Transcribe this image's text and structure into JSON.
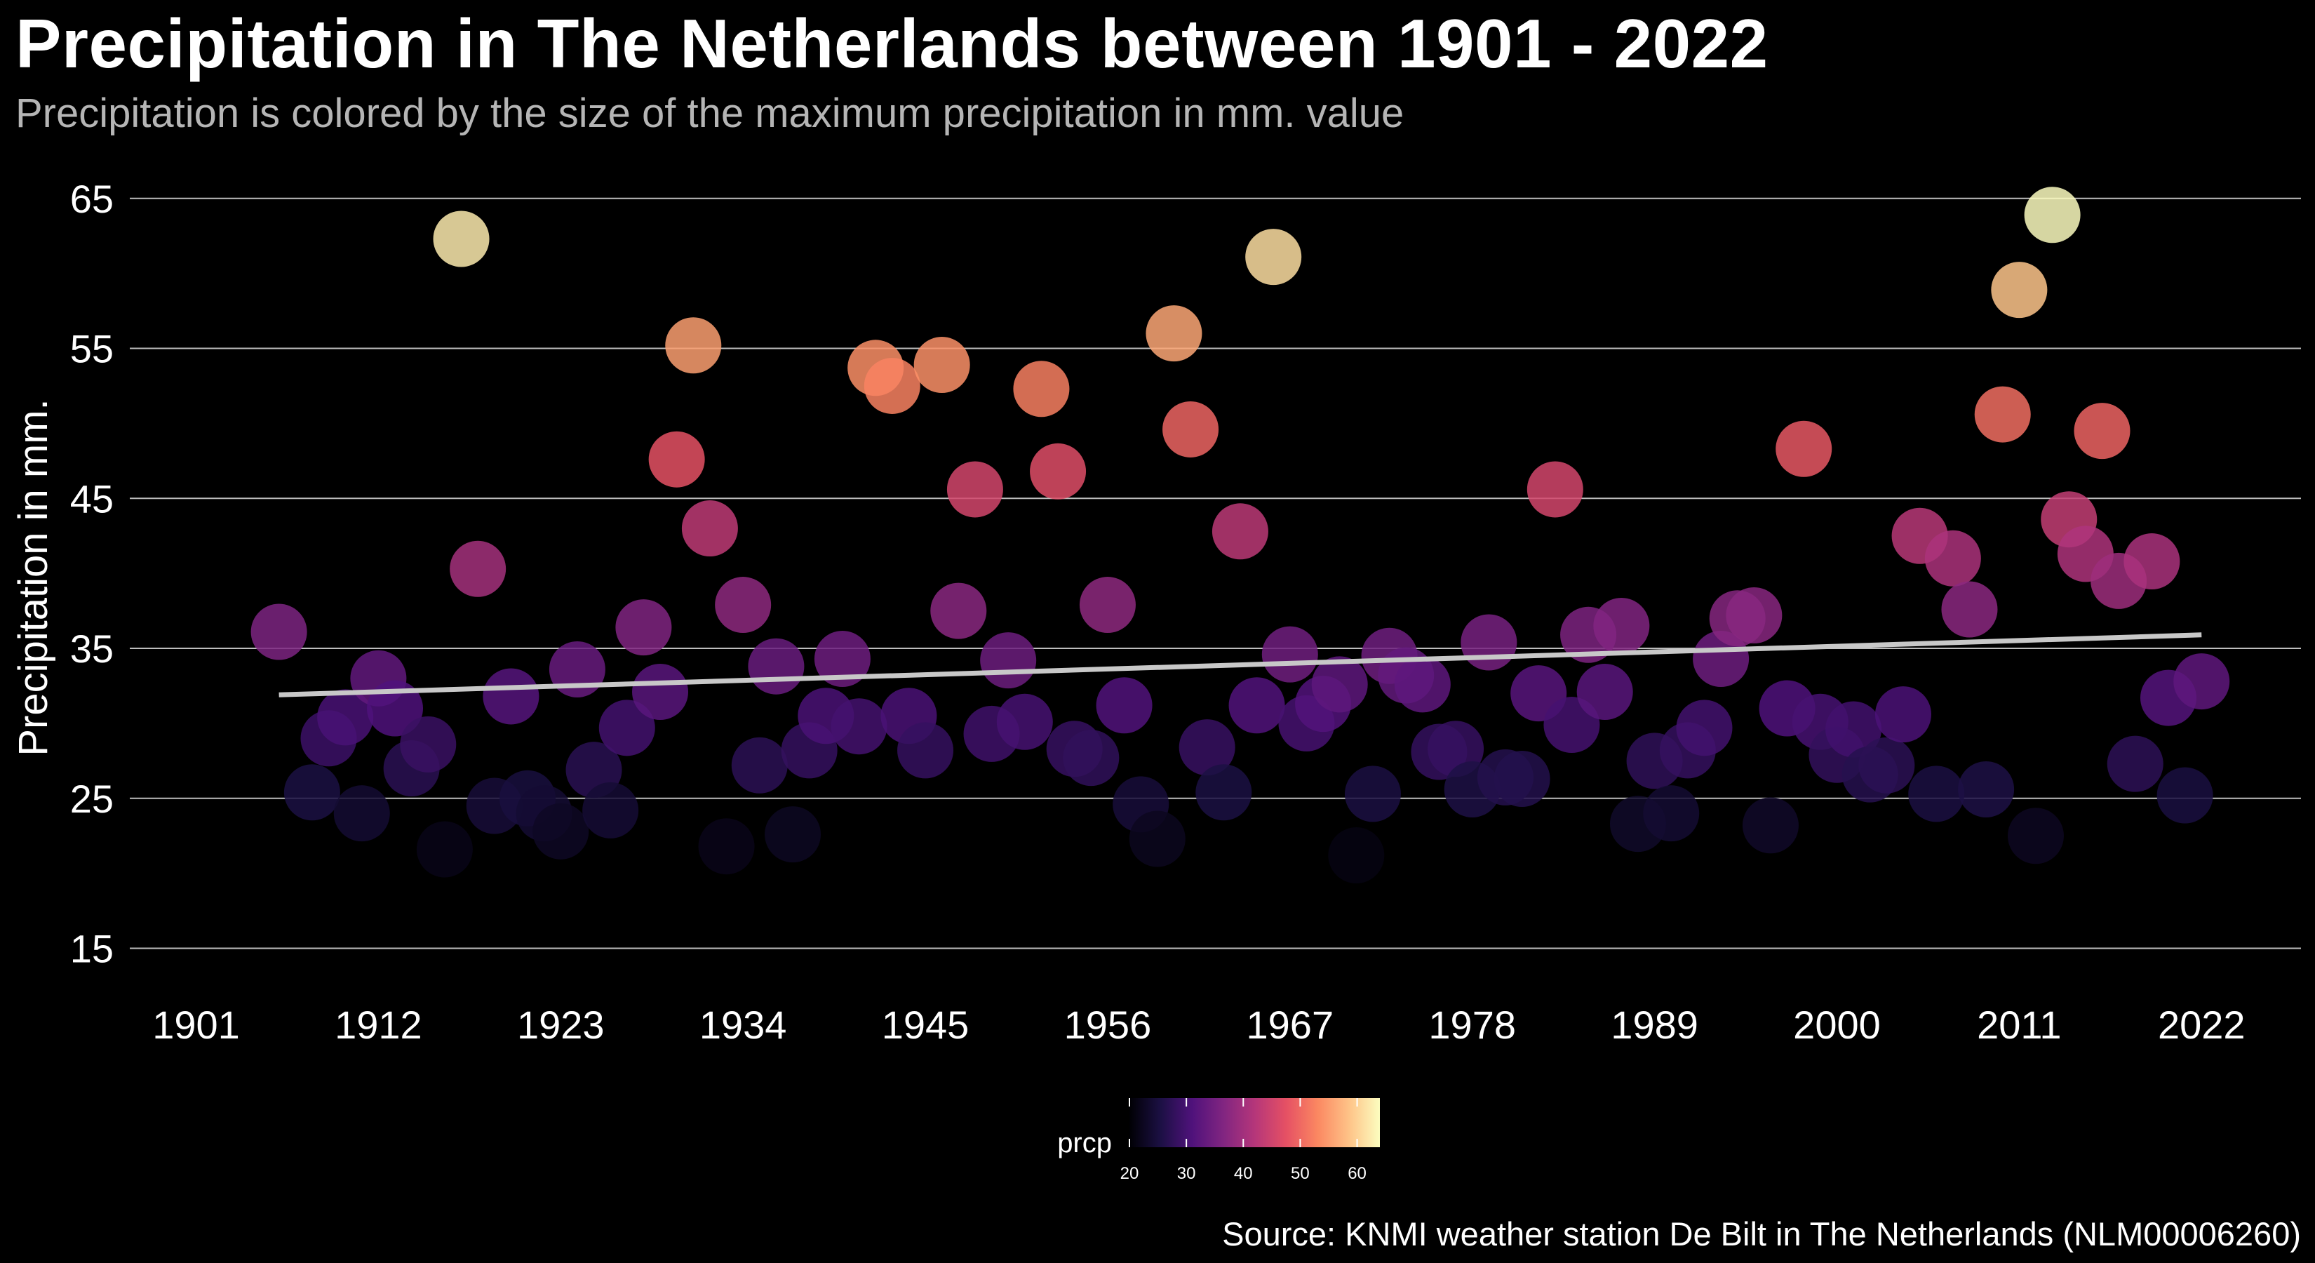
{
  "title": "Precipitation in The Netherlands between 1901 - 2022",
  "subtitle": "Precipitation is colored by the size of the maximum precipitation in mm. value",
  "caption": "Source: KNMI weather station De Bilt in The Netherlands (NLM00006260)",
  "chart_data": {
    "type": "scatter",
    "title": "Precipitation in The Netherlands between 1901 - 2022",
    "subtitle": "Precipitation is colored by the size of the maximum precipitation in mm. value",
    "xlabel": "",
    "ylabel": "Precipitation in mm.",
    "xlim": [
      1897,
      2028
    ],
    "ylim": [
      12.5,
      67
    ],
    "x_ticks": [
      "1901",
      "1912",
      "1923",
      "1934",
      "1945",
      "1956",
      "1967",
      "1978",
      "1989",
      "2000",
      "2011",
      "2022"
    ],
    "y_ticks": [
      "15",
      "25",
      "35",
      "45",
      "55",
      "65"
    ],
    "grid": "horizontal major lines only",
    "legend": {
      "title": "prcp",
      "position": "bottom",
      "type": "colorbar",
      "range": [
        20,
        64
      ],
      "ticks": [
        "20",
        "30",
        "40",
        "50",
        "60"
      ],
      "palette": "magma",
      "colors": [
        "#000004",
        "#1c1044",
        "#4f127b",
        "#812581",
        "#b5367a",
        "#e55064",
        "#fb8761",
        "#fec287",
        "#fcfdbf"
      ]
    },
    "trend_line": {
      "x": [
        1906,
        2022
      ],
      "y": [
        31.9,
        35.9
      ],
      "color": "#c8c8c8"
    },
    "series": [
      {
        "name": "prcp",
        "points": [
          [
            1906,
            36.1
          ],
          [
            1908,
            25.4
          ],
          [
            1909,
            29.0
          ],
          [
            1910,
            30.4
          ],
          [
            1911,
            24.0
          ],
          [
            1912,
            33.0
          ],
          [
            1913,
            31.0
          ],
          [
            1914,
            27.0
          ],
          [
            1915,
            28.6
          ],
          [
            1916,
            21.6
          ],
          [
            1917,
            62.3
          ],
          [
            1918,
            40.3
          ],
          [
            1919,
            24.5
          ],
          [
            1920,
            31.8
          ],
          [
            1921,
            25.0
          ],
          [
            1922,
            24.0
          ],
          [
            1923,
            22.8
          ],
          [
            1924,
            33.6
          ],
          [
            1925,
            26.9
          ],
          [
            1926,
            24.2
          ],
          [
            1927,
            29.7
          ],
          [
            1928,
            36.4
          ],
          [
            1929,
            32.1
          ],
          [
            1930,
            47.6
          ],
          [
            1931,
            55.2
          ],
          [
            1932,
            43.0
          ],
          [
            1933,
            21.8
          ],
          [
            1934,
            37.9
          ],
          [
            1935,
            27.2
          ],
          [
            1936,
            33.8
          ],
          [
            1937,
            22.6
          ],
          [
            1938,
            28.2
          ],
          [
            1939,
            30.5
          ],
          [
            1940,
            34.3
          ],
          [
            1941,
            29.8
          ],
          [
            1942,
            53.7
          ],
          [
            1943,
            52.5
          ],
          [
            1944,
            30.5
          ],
          [
            1945,
            28.2
          ],
          [
            1946,
            53.9
          ],
          [
            1947,
            37.5
          ],
          [
            1948,
            45.6
          ],
          [
            1949,
            29.3
          ],
          [
            1950,
            34.2
          ],
          [
            1951,
            30.1
          ],
          [
            1952,
            52.3
          ],
          [
            1953,
            46.8
          ],
          [
            1954,
            28.3
          ],
          [
            1955,
            27.7
          ],
          [
            1956,
            37.9
          ],
          [
            1957,
            31.2
          ],
          [
            1958,
            24.6
          ],
          [
            1959,
            22.3
          ],
          [
            1960,
            56.0
          ],
          [
            1961,
            49.6
          ],
          [
            1962,
            28.4
          ],
          [
            1963,
            25.4
          ],
          [
            1964,
            42.8
          ],
          [
            1965,
            31.2
          ],
          [
            1966,
            61.1
          ],
          [
            1967,
            34.6
          ],
          [
            1968,
            30.0
          ],
          [
            1969,
            31.3
          ],
          [
            1970,
            32.6
          ],
          [
            1971,
            21.2
          ],
          [
            1972,
            25.3
          ],
          [
            1973,
            34.5
          ],
          [
            1974,
            33.2
          ],
          [
            1975,
            32.6
          ],
          [
            1976,
            28.1
          ],
          [
            1977,
            28.3
          ],
          [
            1978,
            25.6
          ],
          [
            1979,
            35.4
          ],
          [
            1980,
            26.4
          ],
          [
            1981,
            26.3
          ],
          [
            1982,
            32.0
          ],
          [
            1983,
            45.6
          ],
          [
            1984,
            29.9
          ],
          [
            1985,
            35.9
          ],
          [
            1986,
            32.1
          ],
          [
            1987,
            36.5
          ],
          [
            1988,
            23.3
          ],
          [
            1989,
            27.5
          ],
          [
            1990,
            24.0
          ],
          [
            1991,
            28.2
          ],
          [
            1992,
            29.7
          ],
          [
            1993,
            34.3
          ],
          [
            1994,
            37.0
          ],
          [
            1995,
            37.2
          ],
          [
            1996,
            23.2
          ],
          [
            1997,
            31.0
          ],
          [
            1998,
            48.3
          ],
          [
            1999,
            30.1
          ],
          [
            2000,
            27.9
          ],
          [
            2001,
            29.6
          ],
          [
            2002,
            26.6
          ],
          [
            2003,
            27.2
          ],
          [
            2004,
            30.6
          ],
          [
            2005,
            42.5
          ],
          [
            2006,
            25.3
          ],
          [
            2007,
            41.0
          ],
          [
            2008,
            37.6
          ],
          [
            2009,
            25.6
          ],
          [
            2010,
            50.6
          ],
          [
            2011,
            58.9
          ],
          [
            2012,
            22.5
          ],
          [
            2013,
            63.9
          ],
          [
            2014,
            43.6
          ],
          [
            2015,
            41.3
          ],
          [
            2016,
            49.5
          ],
          [
            2017,
            39.5
          ],
          [
            2018,
            27.3
          ],
          [
            2019,
            40.8
          ],
          [
            2020,
            31.7
          ],
          [
            2021,
            25.2
          ],
          [
            2022,
            32.8
          ]
        ]
      }
    ]
  }
}
